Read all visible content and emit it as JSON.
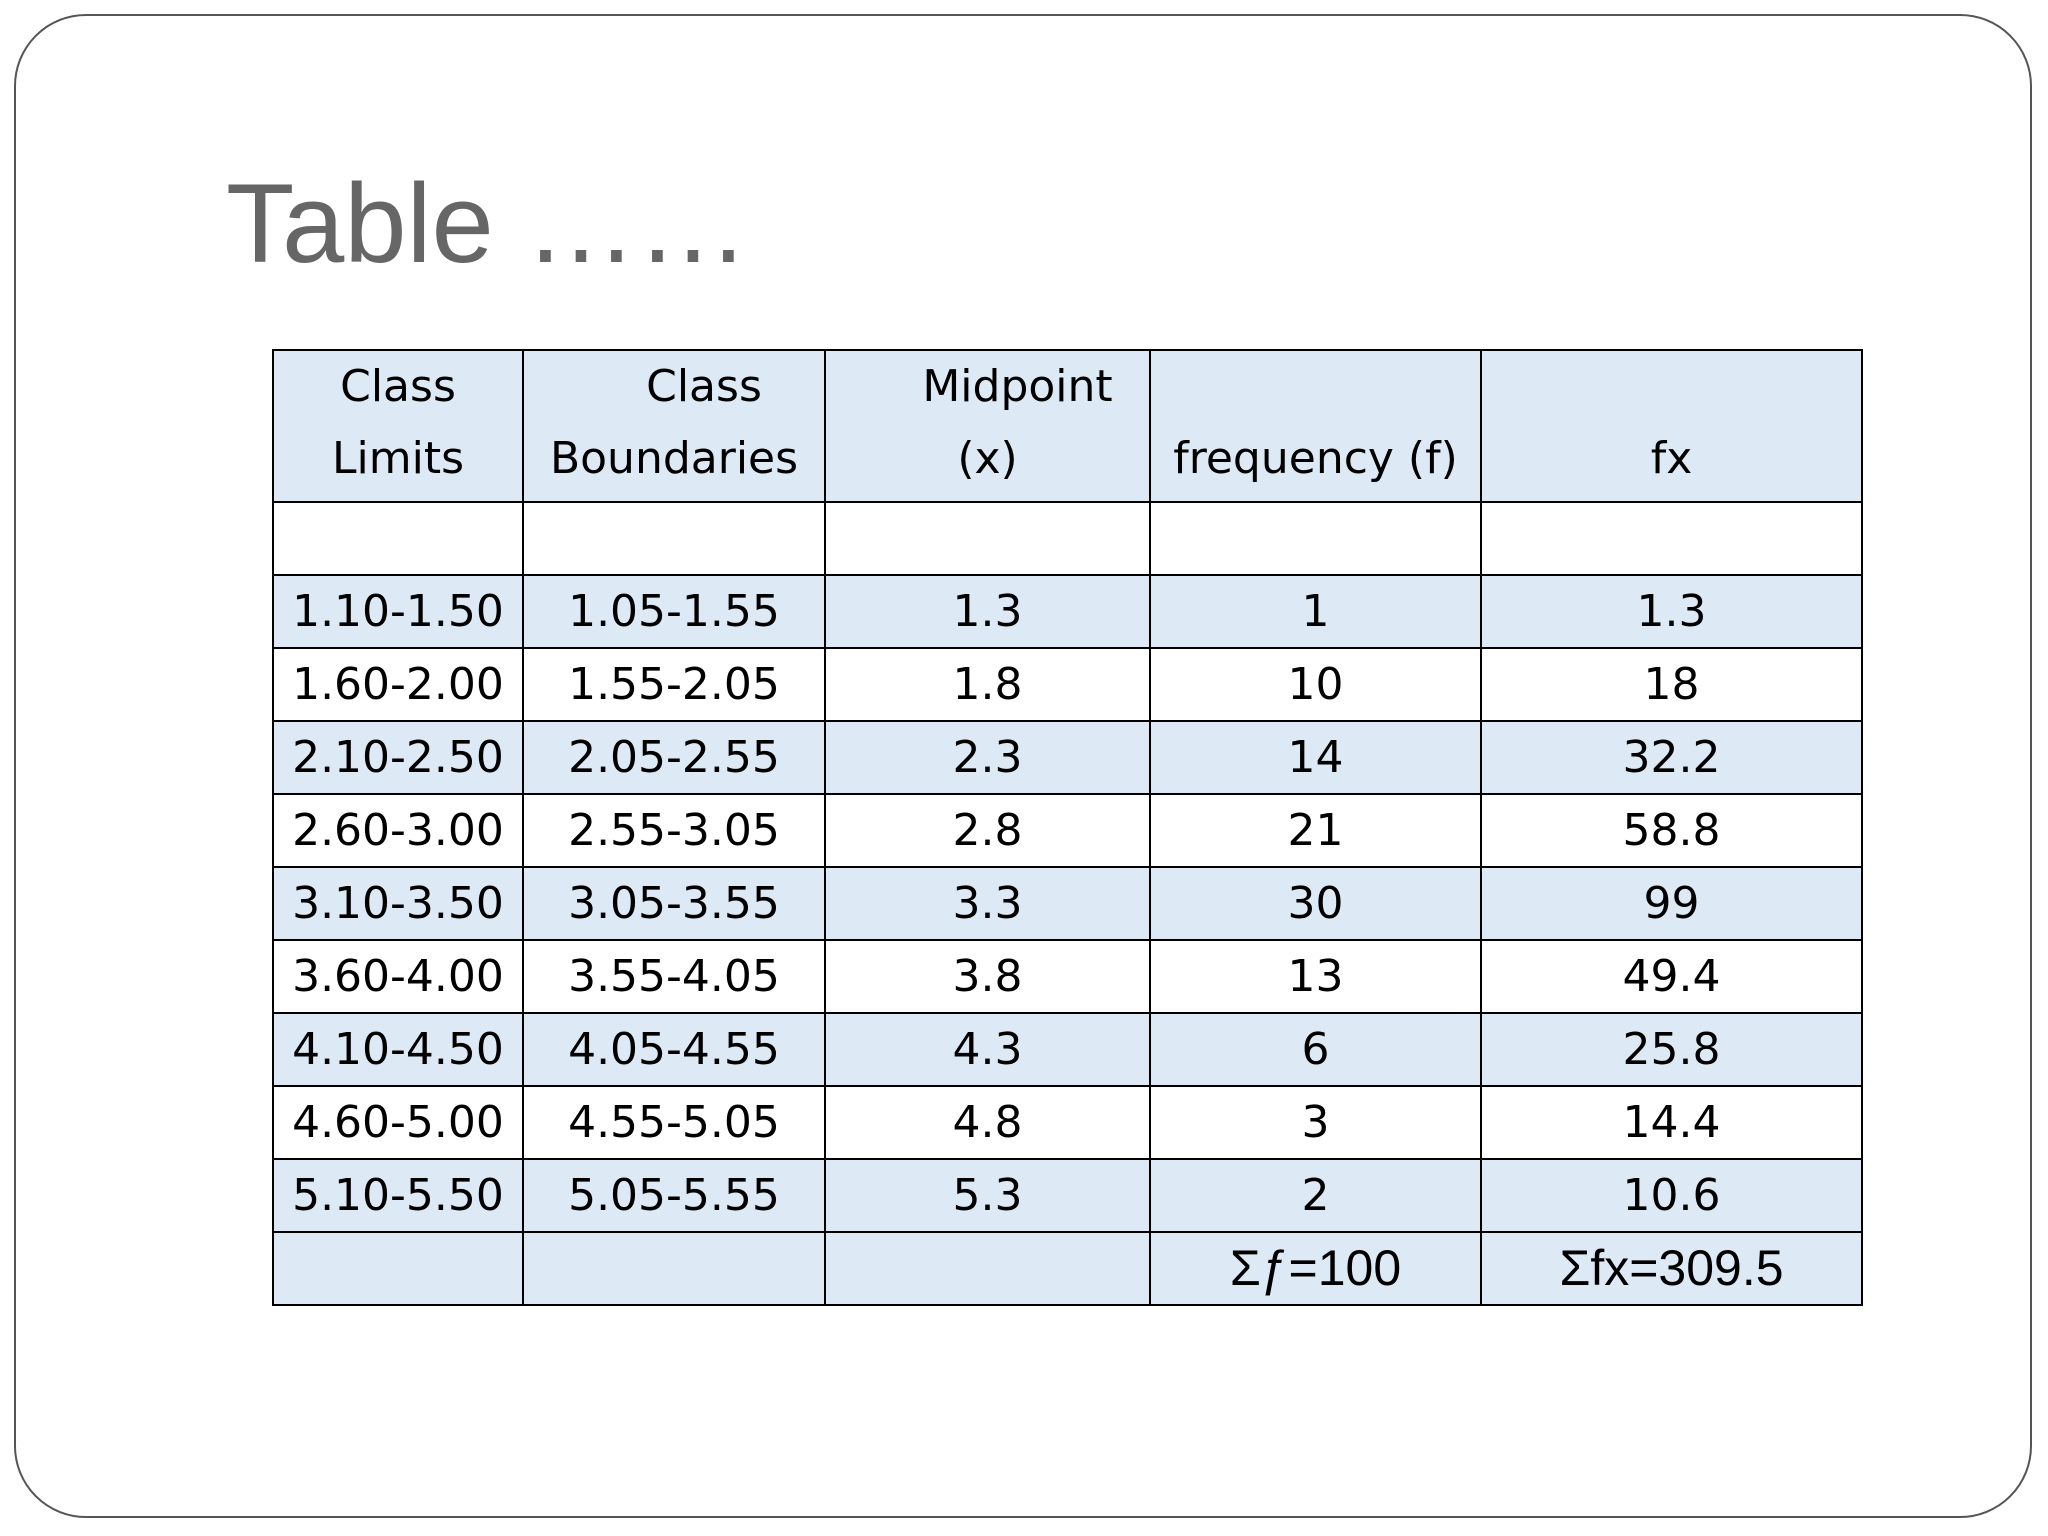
{
  "slide": {
    "title": "Table ……"
  },
  "table": {
    "headers": [
      {
        "line1": "Class",
        "line2": "Limits"
      },
      {
        "line1": "Class",
        "line2": "Boundaries"
      },
      {
        "line1": "Midpoint",
        "line2": "(x)"
      },
      {
        "line1": "",
        "line2": "frequency (f)"
      },
      {
        "line1": "",
        "line2": "fx"
      }
    ],
    "rows": [
      [
        "1.10-1.50",
        "1.05-1.55",
        "1.3",
        "1",
        "1.3"
      ],
      [
        "1.60-2.00",
        "1.55-2.05",
        "1.8",
        "10",
        "18"
      ],
      [
        "2.10-2.50",
        "2.05-2.55",
        "2.3",
        "14",
        "32.2"
      ],
      [
        "2.60-3.00",
        "2.55-3.05",
        "2.8",
        "21",
        "58.8"
      ],
      [
        "3.10-3.50",
        "3.05-3.55",
        "3.3",
        "30",
        "99"
      ],
      [
        "3.60-4.00",
        "3.55-4.05",
        "3.8",
        "13",
        "49.4"
      ],
      [
        "4.10-4.50",
        "4.05-4.55",
        "4.3",
        "6",
        "25.8"
      ],
      [
        "4.60-5.00",
        "4.55-5.05",
        "4.8",
        "3",
        "14.4"
      ],
      [
        "5.10-5.50",
        "5.05-5.55",
        "5.3",
        "2",
        "10.6"
      ]
    ],
    "totals": [
      "",
      "",
      "",
      "Σƒ=100",
      "Σfx=309.5"
    ]
  },
  "colors": {
    "header_fill": "#dde9f4",
    "shaded_row_fill": "#dde9f4",
    "title_color": "#666666",
    "border": "#000000"
  }
}
